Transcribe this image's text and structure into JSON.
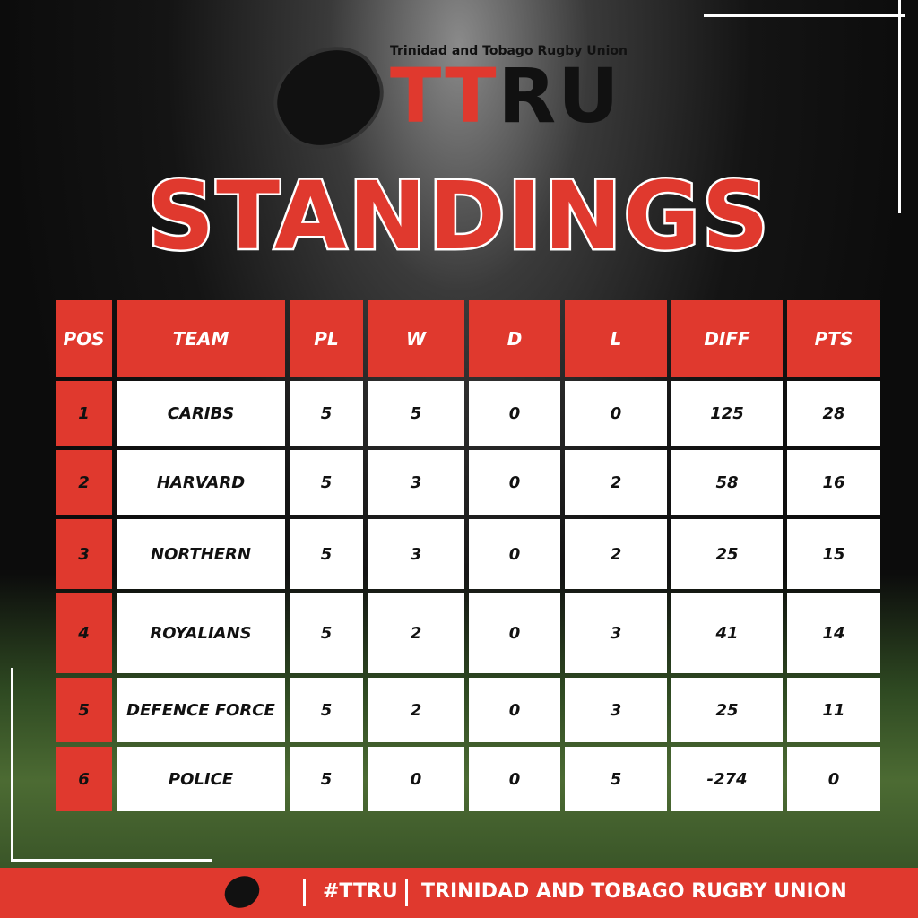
{
  "header": {
    "org_name": "Trinidad and Tobago Rugby Union",
    "logo_parts": [
      "TT",
      "RU"
    ]
  },
  "title": "STANDINGS",
  "table": {
    "columns": [
      "POS",
      "TEAM",
      "PL",
      "W",
      "D",
      "L",
      "DIFF",
      "PTS"
    ],
    "rows": [
      [
        1,
        "CARIBS",
        5,
        5,
        0,
        0,
        125,
        28
      ],
      [
        2,
        "HARVARD",
        5,
        3,
        0,
        2,
        58,
        16
      ],
      [
        3,
        "NORTHERN",
        5,
        3,
        0,
        2,
        25,
        15
      ],
      [
        4,
        "ROYALIANS",
        5,
        2,
        0,
        3,
        41,
        14
      ],
      [
        5,
        "DEFENCE FORCE",
        5,
        2,
        0,
        3,
        25,
        11
      ],
      [
        6,
        "POLICE",
        5,
        0,
        0,
        5,
        -274,
        0
      ]
    ]
  },
  "footer": {
    "hashtag": "#TTRU",
    "org_name": "TRINIDAD AND TOBAGO RUGBY UNION"
  }
}
